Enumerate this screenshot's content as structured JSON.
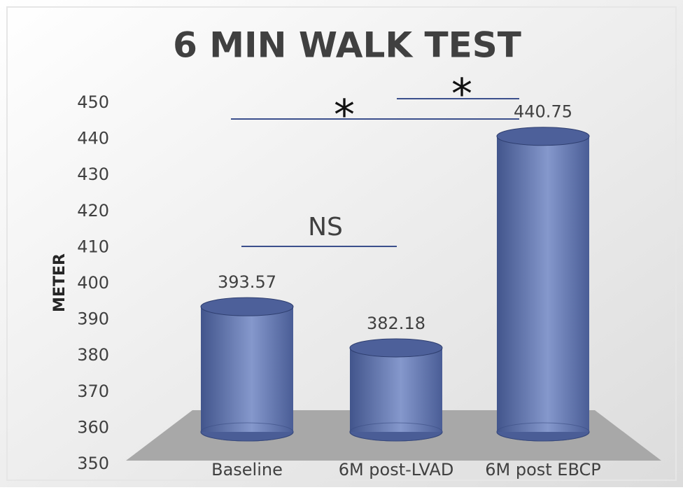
{
  "chart_data": {
    "type": "bar",
    "title": "6 MIN WALK TEST",
    "y_label": "METER",
    "categories": [
      "Baseline",
      "6M post-LVAD",
      "6M post EBCP"
    ],
    "values": [
      393.57,
      382.18,
      440.75
    ],
    "color": "#5b6fa8",
    "ylim": [
      350,
      450
    ],
    "yticks": [
      350,
      360,
      370,
      380,
      390,
      400,
      410,
      420,
      430,
      440,
      450
    ],
    "annotations": [
      {
        "text": "NS"
      },
      {
        "text": "*"
      },
      {
        "text": "*"
      }
    ]
  }
}
